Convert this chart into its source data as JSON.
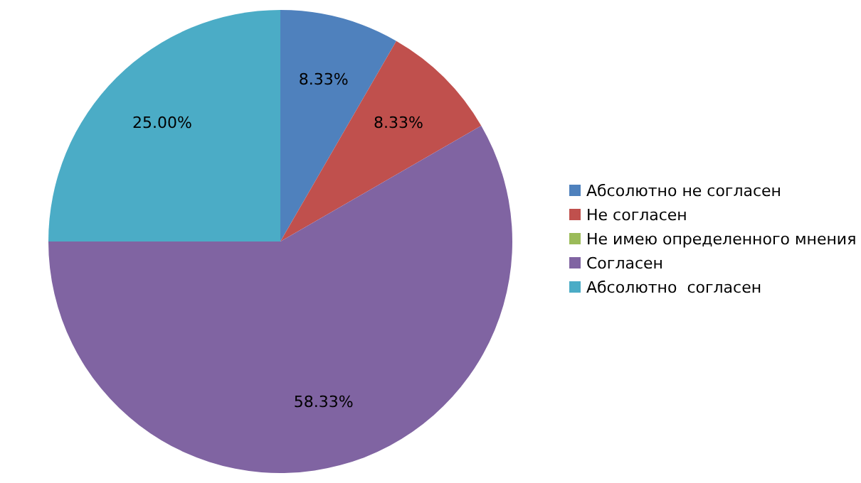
{
  "chart_data": {
    "type": "pie",
    "categories": [
      "Абсолютно не согласен",
      "Не согласен",
      "Не имею определенного мнения",
      "Согласен",
      "Абсолютно  согласен"
    ],
    "values": [
      8.33,
      8.33,
      0,
      58.33,
      25.0
    ],
    "colors": [
      "#4f81bd",
      "#c0504d",
      "#9bbb59",
      "#8064a2",
      "#4bacc6"
    ],
    "value_labels": [
      "8.33%",
      "8.33%",
      null,
      "58.33%",
      "25.00%"
    ],
    "legend": "right"
  }
}
